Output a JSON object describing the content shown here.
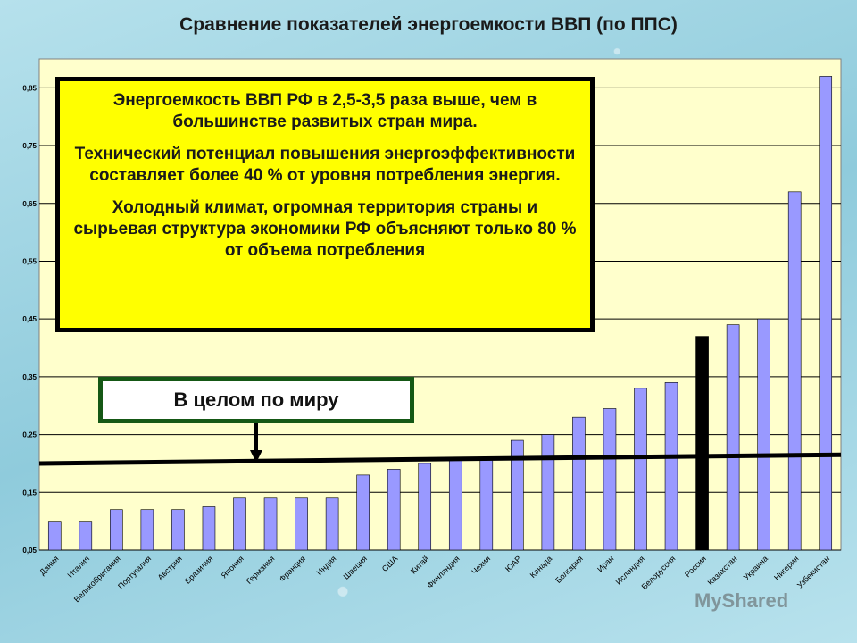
{
  "title": "Сравнение показателей энергоемкости ВВП (по ППС)",
  "note": {
    "p1": "Энергоемкость ВВП РФ в 2,5-3,5 раза выше, чем в большинстве развитых стран мира.",
    "p2": "Технический потенциал повышения энергоэффективности составляет более 40 % от уровня потребления энергия.",
    "p3": "Холодный климат, огромная территория страны и сырьевая структура экономики РФ объясняют только 80 % от объема потребления"
  },
  "world_label": "В целом по миру",
  "watermark": "MyShared",
  "colors": {
    "bar": "#9999ff",
    "highlight": "#000000",
    "plot_bg": "#ffffcc",
    "world_line": "#000000",
    "note_bg": "#ffff00"
  },
  "chart_data": {
    "type": "bar",
    "title": "Сравнение показателей энергоемкости ВВП (по ППС)",
    "ylim": [
      0.05,
      0.9
    ],
    "y_ticks": [
      "0,05",
      "0,15",
      "0,25",
      "0,35",
      "0,45",
      "0,55",
      "0,65",
      "0,75",
      "0,85"
    ],
    "categories": [
      "Дания",
      "Италия",
      "Великобритания",
      "Португалия",
      "Австрия",
      "Бразилия",
      "Япония",
      "Германия",
      "Франция",
      "Индия",
      "Швеция",
      "США",
      "Китай",
      "Финляндия",
      "Чехия",
      "ЮАР",
      "Канада",
      "Болгария",
      "Иран",
      "Исландия",
      "Белоруссия",
      "Россия",
      "Казахстан",
      "Украина",
      "Нигерия",
      "Узбекистан"
    ],
    "values": [
      0.1,
      0.1,
      0.12,
      0.12,
      0.12,
      0.125,
      0.14,
      0.14,
      0.14,
      0.14,
      0.18,
      0.19,
      0.2,
      0.21,
      0.21,
      0.24,
      0.25,
      0.28,
      0.295,
      0.33,
      0.34,
      0.42,
      0.44,
      0.45,
      0.67,
      0.87
    ],
    "highlight_category": "Россия",
    "world_line": {
      "label": "В целом по миру",
      "start": 0.2,
      "end": 0.215
    },
    "grid": true,
    "legend": "none"
  }
}
